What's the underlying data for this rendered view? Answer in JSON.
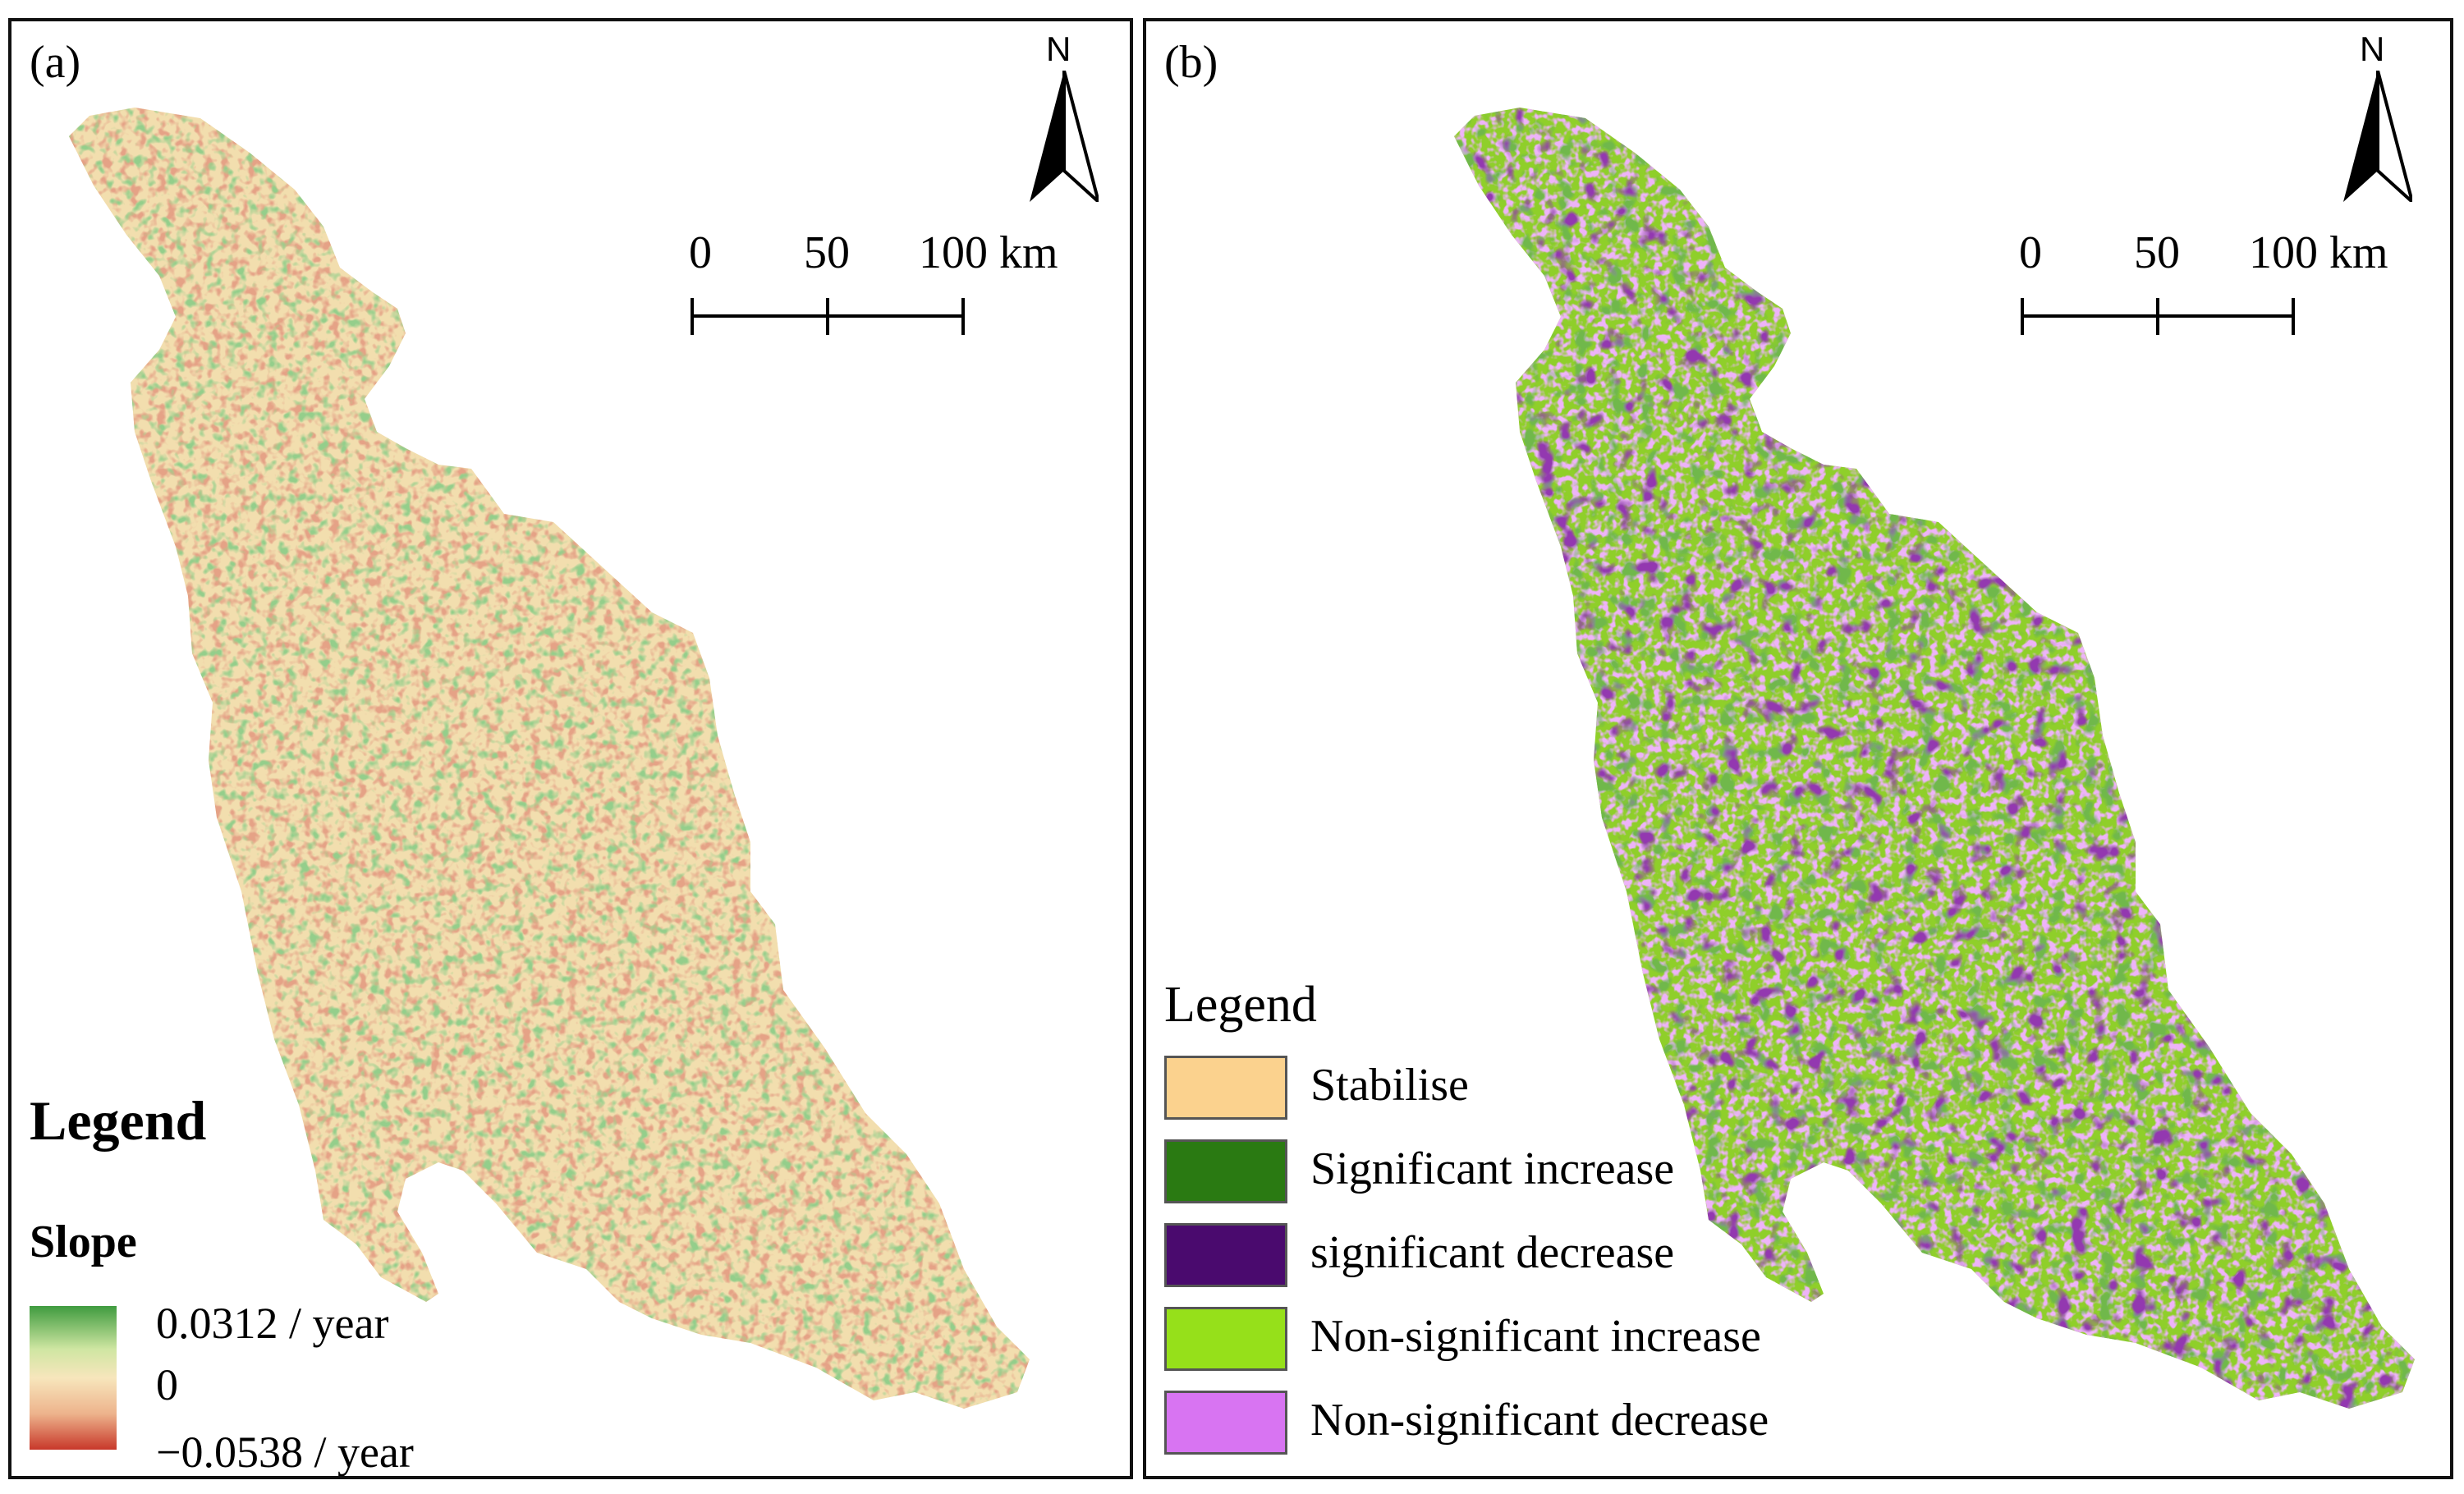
{
  "panel_a": {
    "label": "(a)",
    "north": "N",
    "scale": {
      "ticks": [
        "0",
        "50",
        "100 km"
      ]
    },
    "legend": {
      "title": "Legend",
      "subtitle": "Slope",
      "max_label": "0.0312 / year",
      "mid_label": "0",
      "min_label": "−0.0538 / year"
    },
    "colors": {
      "high": "#3f9b3f",
      "mid": "#f7e6bc",
      "low": "#c8382a"
    }
  },
  "panel_b": {
    "label": "(b)",
    "north": "N",
    "scale": {
      "ticks": [
        "0",
        "50",
        "100 km"
      ]
    },
    "legend": {
      "title": "Legend",
      "items": [
        {
          "label": "Stabilise",
          "color": "#fbd28e"
        },
        {
          "label": "Significant increase",
          "color": "#2a7a12"
        },
        {
          "label": "significant decrease",
          "color": "#4a0a6e"
        },
        {
          "label": "Non-significant increase",
          "color": "#96e01a"
        },
        {
          "label": "Non-significant decrease",
          "color": "#d874f2"
        }
      ]
    }
  }
}
